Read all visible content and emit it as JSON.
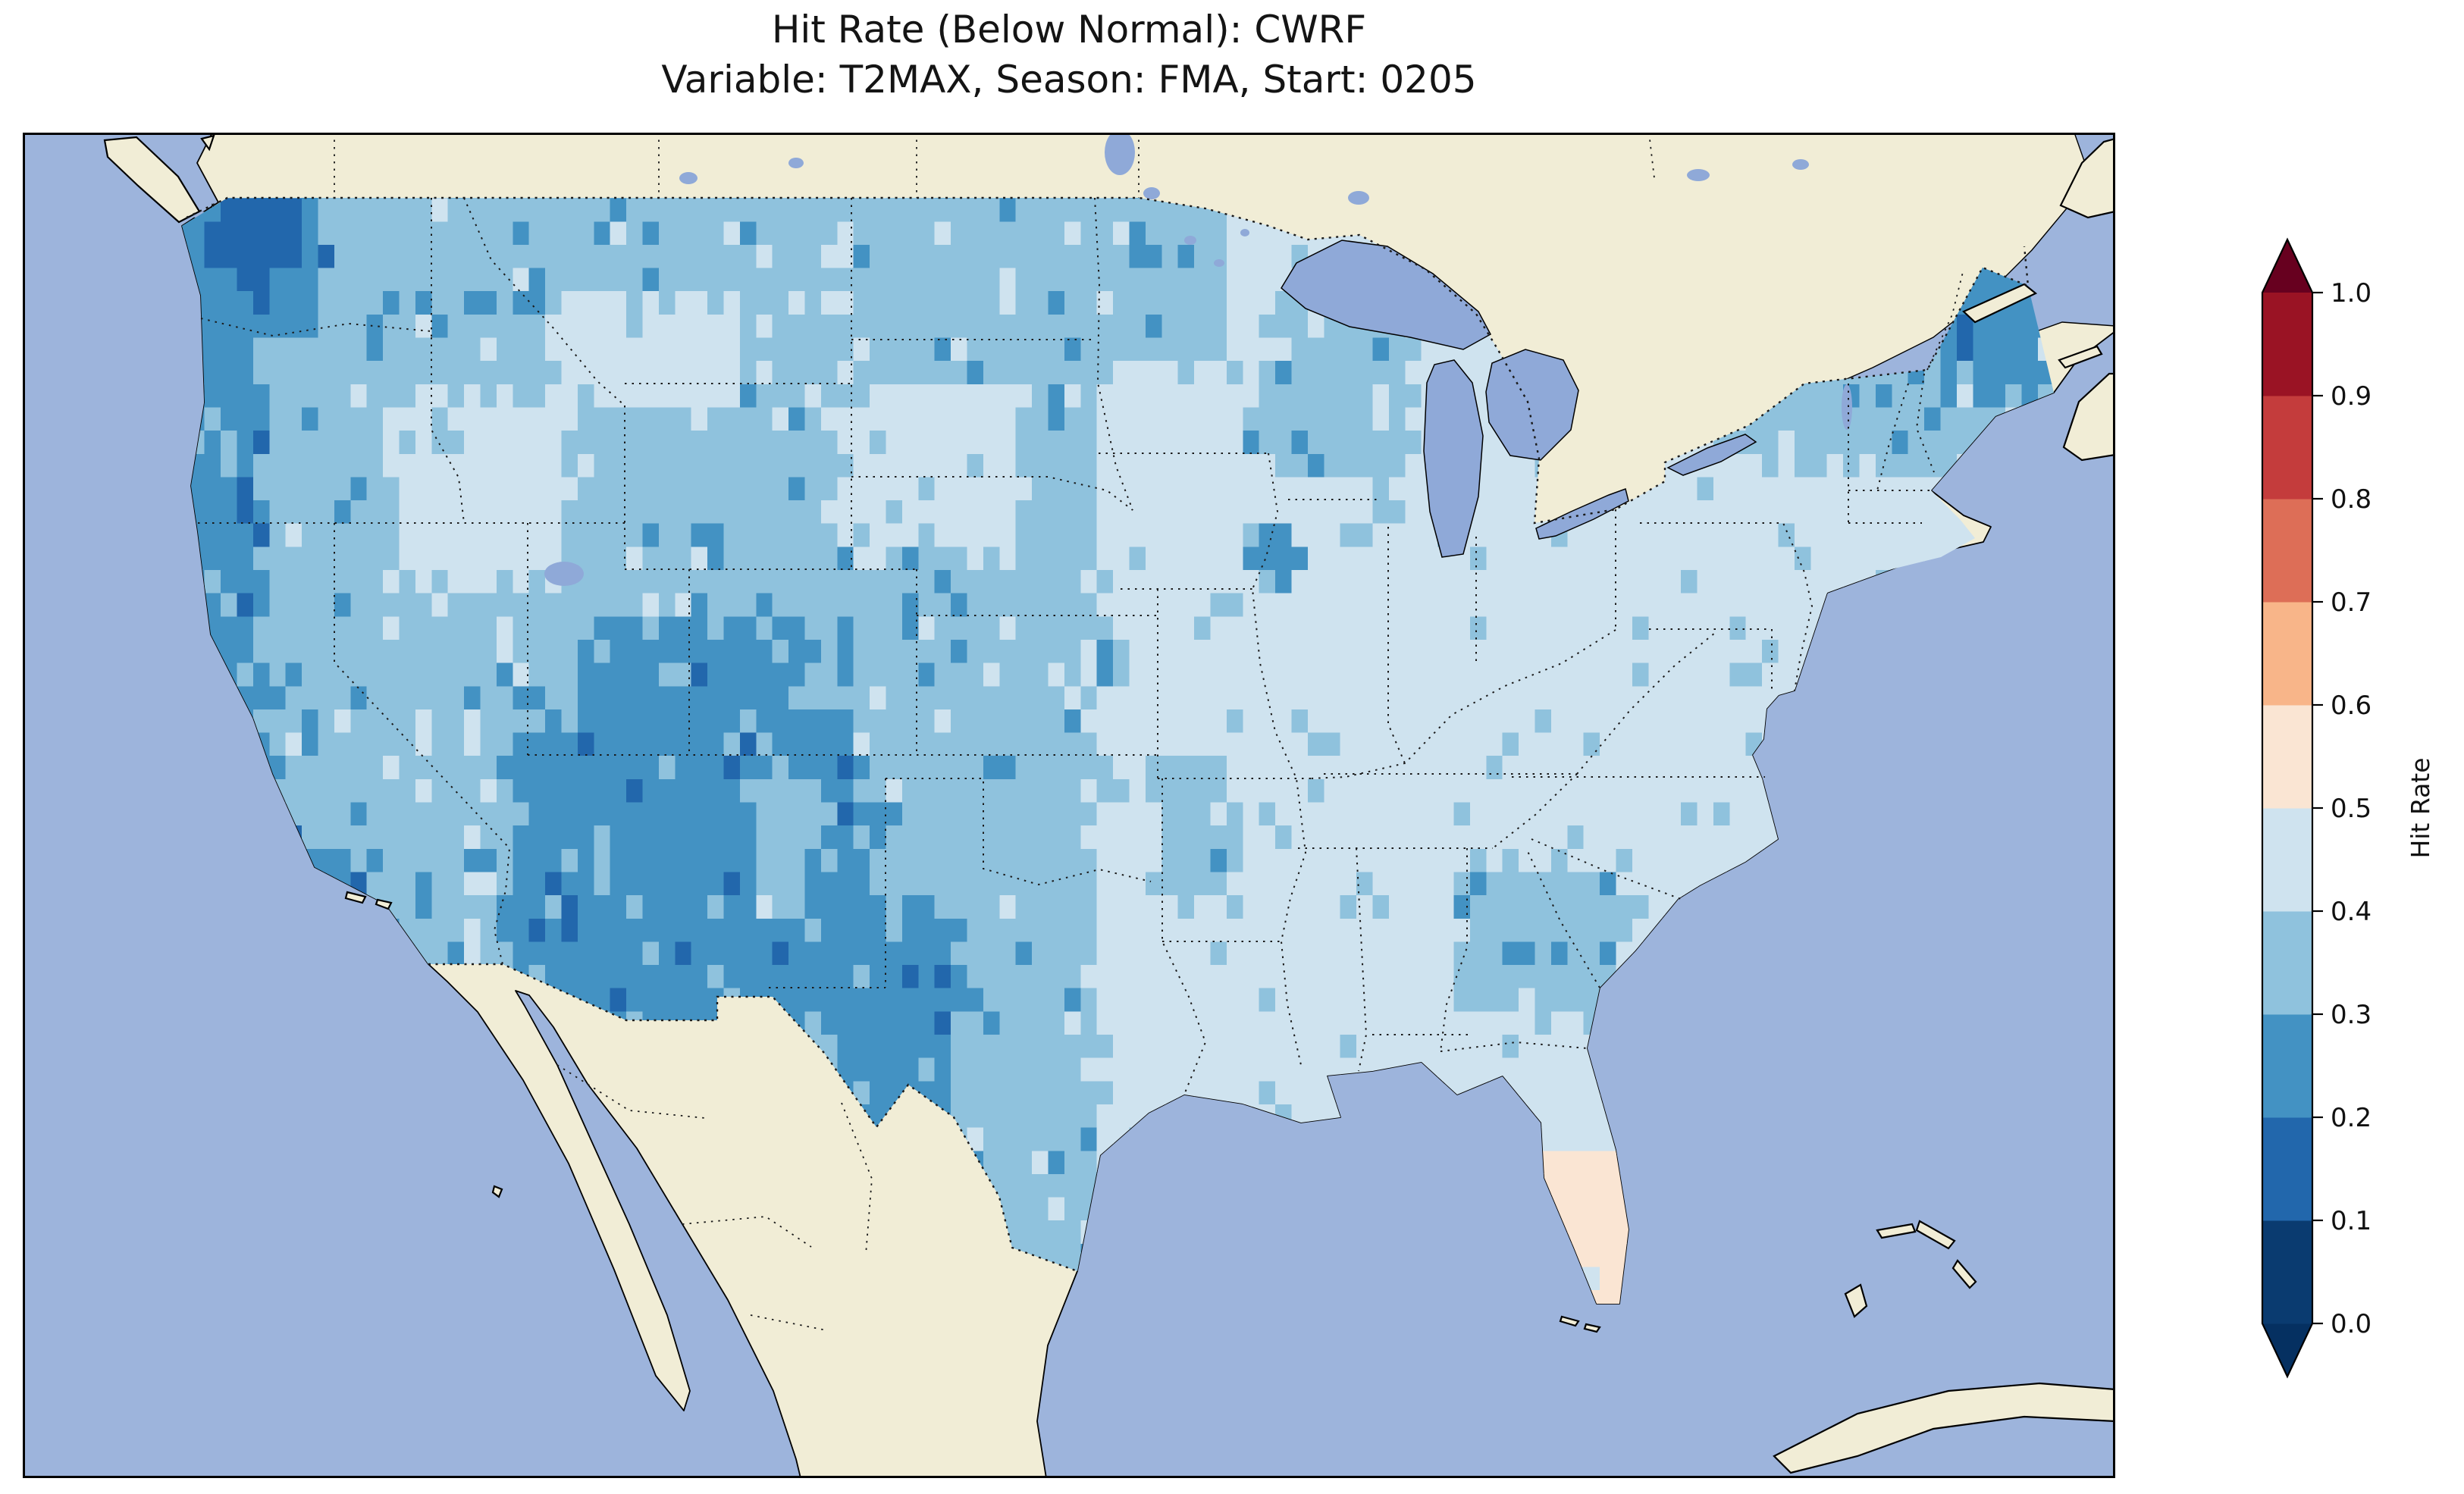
{
  "title": {
    "line1": "Hit Rate (Below Normal): CWRF",
    "line2": "Variable: T2MAX, Season: FMA, Start: 0205"
  },
  "colorbar": {
    "label": "Hit Rate",
    "ticks": [
      "0.0",
      "0.1",
      "0.2",
      "0.3",
      "0.4",
      "0.5",
      "0.6",
      "0.7",
      "0.8",
      "0.9",
      "1.0"
    ],
    "bin_colors": [
      "#0a3b70",
      "#2267ac",
      "#4392c3",
      "#8fc2dd",
      "#cfe3ef",
      "#fae5d3",
      "#f8b589",
      "#dd6e57",
      "#c43c3c",
      "#9a1324"
    ],
    "under_color": "#053061",
    "over_color": "#67001f",
    "outline_color": "#000000"
  },
  "map_colors": {
    "ocean": "#9db4dc",
    "land": "#f1edd6",
    "lake": "#8fa9d8",
    "coastline": "#000000",
    "border_dots": "#1a1a1a",
    "frame": "#000000"
  },
  "chart_data": {
    "type": "heatmap",
    "title": "Hit Rate (Below Normal): CWRF",
    "subtitle": "Variable: T2MAX, Season: FMA, Start: 0205",
    "model": "CWRF",
    "variable": "T2MAX",
    "season": "FMA",
    "start": "0205",
    "metric": "Hit Rate",
    "event": "Below Normal",
    "region": "Contiguous United States (gridded map)",
    "colormap": "RdBu_r, discrete 0.1 bins from 0.0 to 1.0, colorbar extended on both ends",
    "colorbar_label": "Hit Rate",
    "colorbar_ticks": [
      0.0,
      0.1,
      0.2,
      0.3,
      0.4,
      0.5,
      0.6,
      0.7,
      0.8,
      0.9,
      1.0
    ],
    "value_range_observed": [
      0.1,
      0.6
    ],
    "summary": "Estimated from figure: hit rates of 0.3-0.5 over most of CONUS; 0.2-0.3 along the Pacific coast, the Southwest (AZ/NM/UT into west Texas) and northern New England; 0.1-0.2 in the Washington Cascades; very pale 0.4-0.5 values across the Midwest and East; 0.5-0.6 (pale pink) over South Florida.",
    "grid": {
      "cell_size_deg": 0.5,
      "lon_range": [
        -125.5,
        -66.5
      ],
      "lat_range": [
        25.0,
        49.5
      ],
      "bins_are": "bin index i corresponds to hit-rate interval [i/10,(i+1)/10]",
      "base": {
        "split_lon": -96.5,
        "west_bin": 3,
        "east_bin": 4
      },
      "patches": [
        {
          "name": "pacific-nw-coast",
          "lon": [
            -125.5,
            -120.3
          ],
          "lat": [
            45.8,
            49.3
          ],
          "bin": 2,
          "hit_rate": [
            0.2,
            0.3
          ]
        },
        {
          "name": "wa-cascades-core",
          "lon": [
            -123.8,
            -120.9
          ],
          "lat": [
            47.2,
            49.0
          ],
          "bin": 1,
          "hit_rate": [
            0.1,
            0.2
          ]
        },
        {
          "name": "or-ca-coast",
          "lon": [
            -125.5,
            -122.2
          ],
          "lat": [
            37.6,
            46.0
          ],
          "bin": 2,
          "hit_rate": [
            0.2,
            0.3
          ]
        },
        {
          "name": "california-coast-south",
          "lon": [
            -124.9,
            -119.4
          ],
          "lat": [
            33.7,
            38.3
          ],
          "bin": 2,
          "hit_rate": [
            0.2,
            0.3
          ]
        },
        {
          "name": "ca-central-valley",
          "lon": [
            -122.0,
            -118.9
          ],
          "lat": [
            35.3,
            39.7
          ],
          "bin": 3,
          "hit_rate": [
            0.3,
            0.4
          ]
        },
        {
          "name": "nv-id-pale",
          "lon": [
            -118.3,
            -112.6
          ],
          "lat": [
            40.7,
            44.7
          ],
          "bin": 4,
          "hit_rate": [
            0.4,
            0.5
          ]
        },
        {
          "name": "mt-central-pale",
          "lon": [
            -113.4,
            -107.6
          ],
          "lat": [
            44.3,
            46.9
          ],
          "bin": 4,
          "hit_rate": [
            0.4,
            0.5
          ]
        },
        {
          "name": "ne-sd-pale",
          "lon": [
            -104.6,
            -98.9
          ],
          "lat": [
            41.5,
            44.7
          ],
          "bin": 4,
          "hit_rate": [
            0.4,
            0.5
          ]
        },
        {
          "name": "southwest-dark",
          "lon": [
            -114.6,
            -103.5
          ],
          "lat": [
            31.1,
            37.7
          ],
          "bin": 2,
          "hit_rate": [
            0.2,
            0.3
          ]
        },
        {
          "name": "co-ut-dark-arm",
          "lon": [
            -112.6,
            -105.8
          ],
          "lat": [
            37.5,
            39.9
          ],
          "bin": 2,
          "hit_rate": [
            0.2,
            0.3
          ]
        },
        {
          "name": "nm-rio-grande-soft",
          "lon": [
            -107.0,
            -105.2
          ],
          "lat": [
            33.4,
            36.6
          ],
          "bin": 3,
          "hit_rate": [
            0.3,
            0.4
          ]
        },
        {
          "name": "west-texas-dark",
          "lon": [
            -104.9,
            -100.7
          ],
          "lat": [
            29.0,
            33.7
          ],
          "bin": 2,
          "hit_rate": [
            0.2,
            0.3
          ]
        },
        {
          "name": "mn-north-medium",
          "lon": [
            -97.2,
            -92.8
          ],
          "lat": [
            45.4,
            49.3
          ],
          "bin": 3,
          "hit_rate": [
            0.3,
            0.4
          ]
        },
        {
          "name": "wi-mi-medium",
          "lon": [
            -91.6,
            -86.7
          ],
          "lat": [
            42.9,
            46.7
          ],
          "bin": 3,
          "hit_rate": [
            0.3,
            0.4
          ]
        },
        {
          "name": "ia-il-dark-spot",
          "lon": [
            -91.9,
            -90.3
          ],
          "lat": [
            40.7,
            42.1
          ],
          "bin": 2,
          "hit_rate": [
            0.2,
            0.3
          ]
        },
        {
          "name": "ozarks-medium",
          "lon": [
            -94.7,
            -92.4
          ],
          "lat": [
            33.9,
            37.1
          ],
          "bin": 3,
          "hit_rate": [
            0.3,
            0.4
          ]
        },
        {
          "name": "southeast-medium",
          "lon": [
            -85.5,
            -80.2
          ],
          "lat": [
            31.3,
            34.8
          ],
          "bin": 3,
          "hit_rate": [
            0.3,
            0.4
          ]
        },
        {
          "name": "adirondacks-medium",
          "lon": [
            -76.6,
            -73.3
          ],
          "lat": [
            43.3,
            45.3
          ],
          "bin": 3,
          "hit_rate": [
            0.3,
            0.4
          ]
        },
        {
          "name": "new-england-medium",
          "lon": [
            -73.6,
            -67.0
          ],
          "lat": [
            43.1,
            47.7
          ],
          "bin": 3,
          "hit_rate": [
            0.3,
            0.4
          ]
        },
        {
          "name": "maine-north-dark",
          "lon": [
            -70.6,
            -67.1
          ],
          "lat": [
            44.7,
            47.7
          ],
          "bin": 2,
          "hit_rate": [
            0.2,
            0.3
          ]
        },
        {
          "name": "south-florida-pink",
          "lon": [
            -82.7,
            -79.7
          ],
          "lat": [
            24.7,
            28.3
          ],
          "bin": 5,
          "hit_rate": [
            0.5,
            0.6
          ]
        },
        {
          "name": "florida-pale-spot",
          "lon": [
            -81.9,
            -81.1
          ],
          "lat": [
            25.3,
            26.3
          ],
          "bin": 4,
          "hit_rate": [
            0.4,
            0.5
          ]
        }
      ]
    }
  }
}
